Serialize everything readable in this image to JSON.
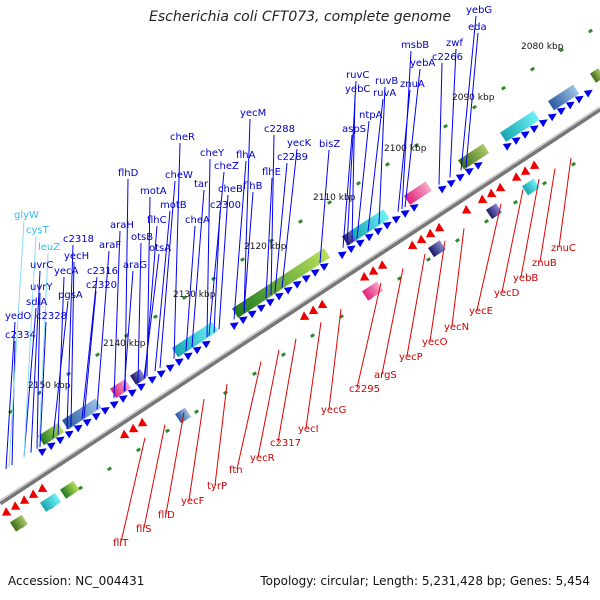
{
  "title": "Escherichia coli CFT073, complete genome",
  "footer": {
    "accession": "Accession: NC_004431",
    "summary": "Topology: circular; Length: 5,231,428 bp; Genes: 5,454"
  },
  "colors": {
    "forward_label": "#0000cc",
    "rna_label": "#33bbee",
    "reverse_label": "#cc0000",
    "backbone": "#999999"
  },
  "ticks": [
    "2080 kbp",
    "2090 kbp",
    "2100 kbp",
    "2110 kbp",
    "2120 kbp",
    "2130 kbp",
    "2140 kbp",
    "2150 kbp"
  ],
  "forward_genes": [
    "yebG",
    "eda",
    "msbB",
    "zwf",
    "c2266",
    "yebA",
    "znuA",
    "ruvC",
    "ruvB",
    "yebC",
    "ruvA",
    "ntpA",
    "aspS",
    "yecM",
    "c2288",
    "yecK",
    "c2289",
    "bisZ",
    "cheR",
    "cheY",
    "cheZ",
    "flhA",
    "flhB",
    "flhE",
    "flhD",
    "cheW",
    "tar",
    "cheB",
    "c2300",
    "motA",
    "motB",
    "flhC",
    "cheA",
    "araH",
    "otsB",
    "otsA",
    "araF",
    "araG",
    "c2318",
    "yecH",
    "c2316",
    "c2320",
    "uvrC",
    "yecA",
    "uvrY",
    "pgsA",
    "sdiA",
    "yedO",
    "c2328",
    "c2334"
  ],
  "rna_genes": [
    "glyW",
    "cysT",
    "leuZ"
  ],
  "reverse_genes": [
    "znuC",
    "znuB",
    "yebB",
    "yecD",
    "yecE",
    "yecN",
    "yecO",
    "yecP",
    "argS",
    "c2295",
    "yecG",
    "yecI",
    "c2317",
    "yecR",
    "ftn",
    "tyrP",
    "yecF",
    "fliD",
    "fliS",
    "fliT"
  ]
}
